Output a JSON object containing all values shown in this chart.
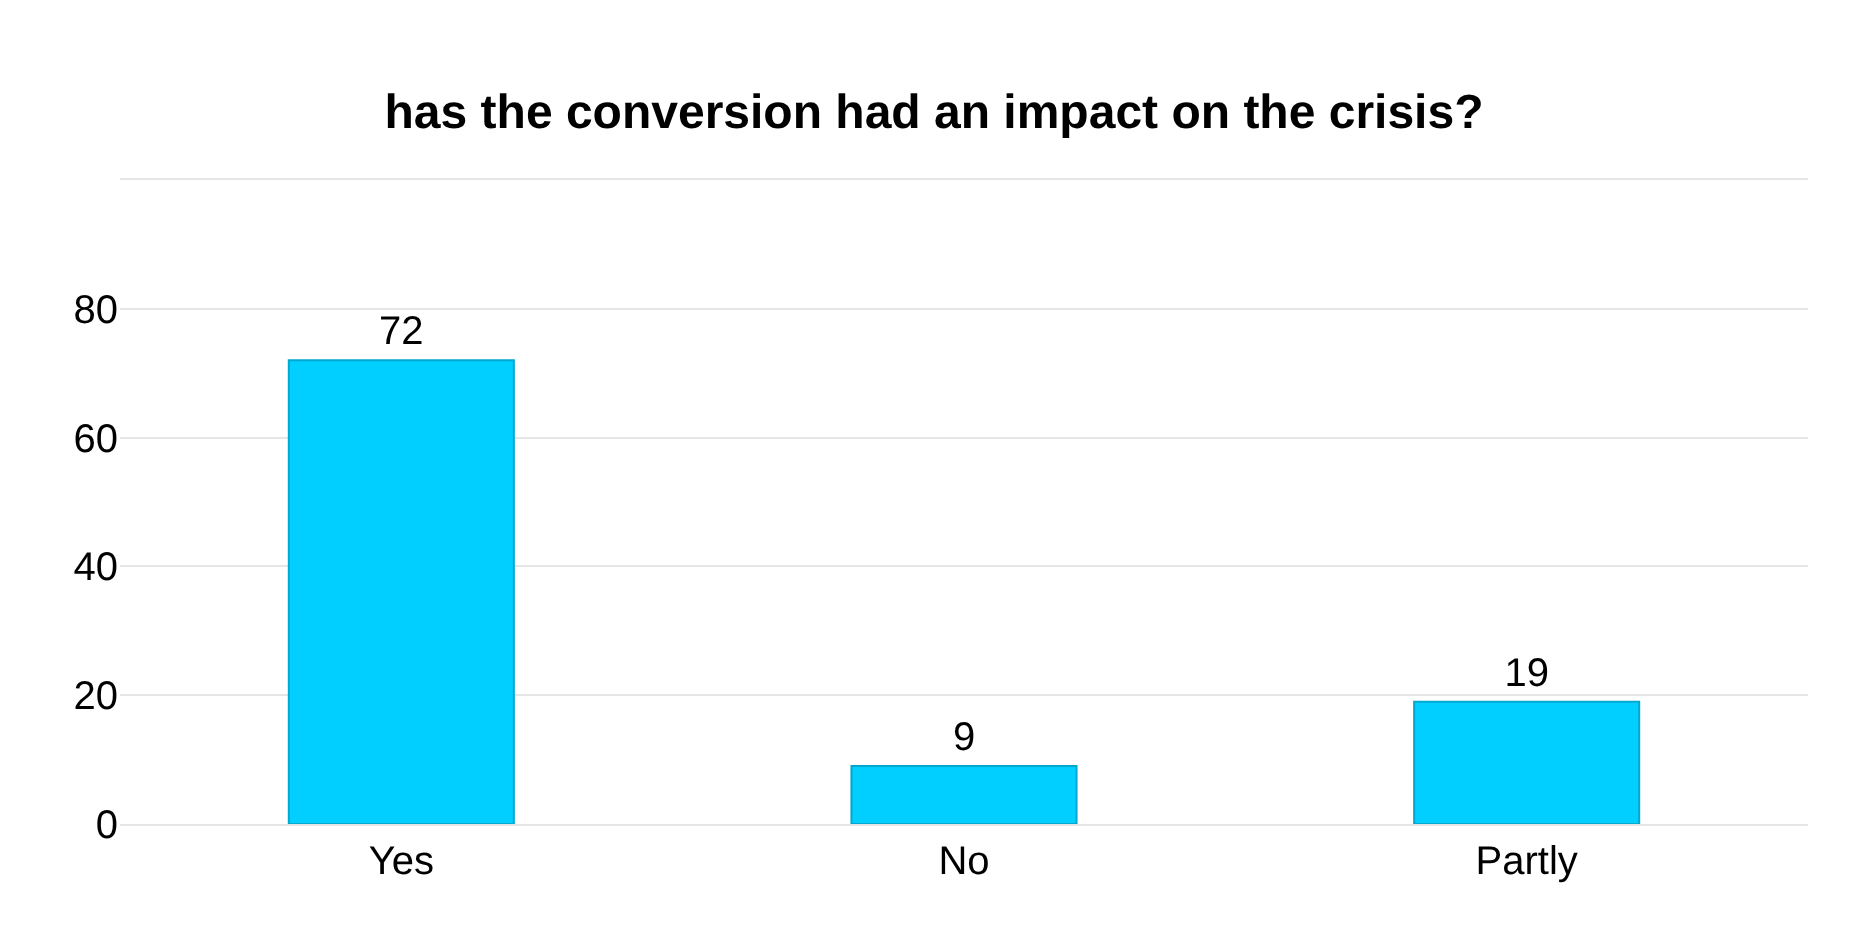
{
  "chart_data": {
    "type": "bar",
    "title": "has the conversion had an impact on the crisis?",
    "categories": [
      "Yes",
      "No",
      "Partly"
    ],
    "values": [
      72,
      9,
      19
    ],
    "color": "#00cfff",
    "ylim": [
      0,
      100
    ],
    "yticks": [
      0,
      20,
      40,
      60,
      80,
      {
        "value": 100,
        "label": null
      }
    ],
    "grid": "y",
    "data_labels": true
  }
}
